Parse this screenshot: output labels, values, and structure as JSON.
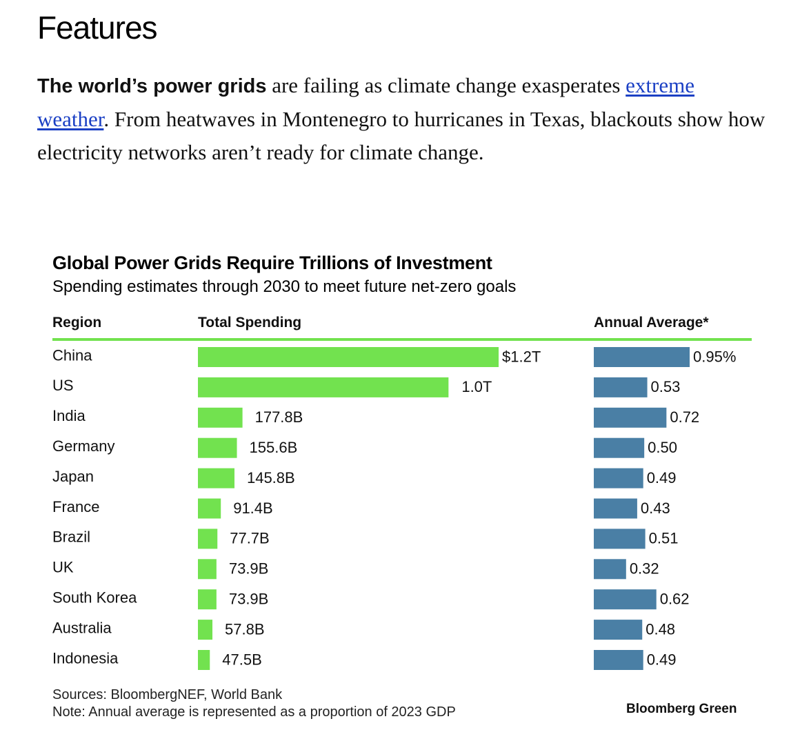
{
  "page": {
    "section_heading": "Features",
    "intro": {
      "lead": "The world’s power grids",
      "text1": " are failing as climate change exasperates ",
      "link_text": "extreme weather",
      "text2": ". From heatwaves in Montenegro to hurricanes in Texas, blackouts show how electricity networks aren’t ready for climate change."
    }
  },
  "colors": {
    "spending_bar": "#72e24f",
    "annual_bar": "#4a7fa5",
    "header_rule": "#72e24f",
    "link": "#1a3fc4"
  },
  "chart_data": {
    "type": "bar",
    "title": "Global Power Grids Require Trillions of Investment",
    "subtitle": "Spending estimates through 2030 to meet future net-zero goals",
    "columns": {
      "region": "Region",
      "total": "Total Spending",
      "annual": "Annual Average*"
    },
    "categories": [
      "China",
      "US",
      "India",
      "Germany",
      "Japan",
      "France",
      "Brazil",
      "UK",
      "South Korea",
      "Australia",
      "Indonesia"
    ],
    "series": [
      {
        "name": "Total Spending",
        "unit": "USD billions",
        "values": [
          1200,
          1000,
          177.8,
          155.6,
          145.8,
          91.4,
          77.7,
          73.9,
          73.9,
          57.8,
          47.5
        ],
        "labels": [
          "$1.2T",
          "1.0T",
          "177.8B",
          "155.6B",
          "145.8B",
          "91.4B",
          "77.7B",
          "73.9B",
          "73.9B",
          "57.8B",
          "47.5B"
        ]
      },
      {
        "name": "Annual Average*",
        "unit": "% of 2023 GDP",
        "values": [
          0.95,
          0.53,
          0.72,
          0.5,
          0.49,
          0.43,
          0.51,
          0.32,
          0.62,
          0.48,
          0.49
        ],
        "labels": [
          "0.95%",
          "0.53",
          "0.72",
          "0.50",
          "0.49",
          "0.43",
          "0.51",
          "0.32",
          "0.62",
          "0.48",
          "0.49"
        ]
      }
    ],
    "sources": "Sources: BloombergNEF, World Bank",
    "note": "Note: Annual average is represented as a proportion of 2023 GDP",
    "brand": "Bloomberg Green"
  }
}
